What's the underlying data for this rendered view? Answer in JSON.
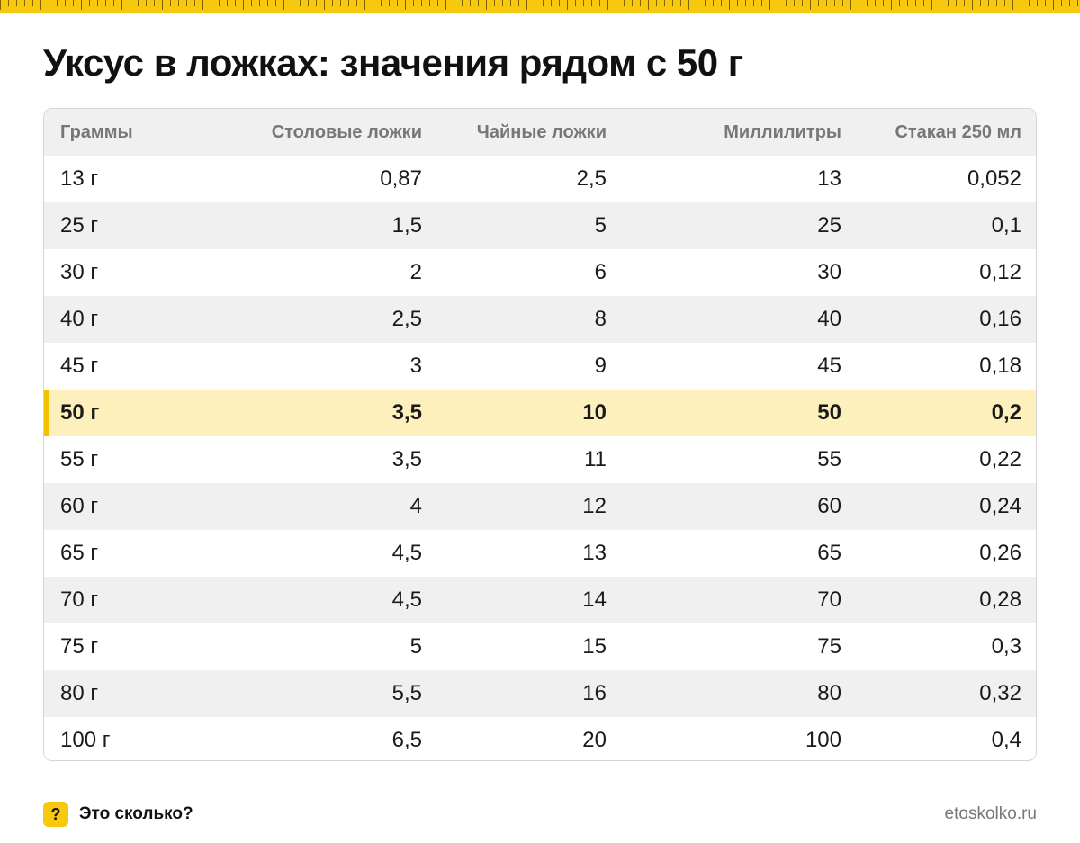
{
  "title": "Уксус в ложках: значения рядом с 50 г",
  "colors": {
    "accent": "#f6c90e",
    "highlight_row": "#fdf0bd",
    "alt_row": "#f0f0f0",
    "header_text": "#777777"
  },
  "table": {
    "headers": [
      "Граммы",
      "Столовые ложки",
      "Чайные ложки",
      "Миллилитры",
      "Стакан 250 мл"
    ],
    "highlighted_row": 5,
    "rows": [
      [
        "13 г",
        "0,87",
        "2,5",
        "13",
        "0,052"
      ],
      [
        "25 г",
        "1,5",
        "5",
        "25",
        "0,1"
      ],
      [
        "30 г",
        "2",
        "6",
        "30",
        "0,12"
      ],
      [
        "40 г",
        "2,5",
        "8",
        "40",
        "0,16"
      ],
      [
        "45 г",
        "3",
        "9",
        "45",
        "0,18"
      ],
      [
        "50 г",
        "3,5",
        "10",
        "50",
        "0,2"
      ],
      [
        "55 г",
        "3,5",
        "11",
        "55",
        "0,22"
      ],
      [
        "60 г",
        "4",
        "12",
        "60",
        "0,24"
      ],
      [
        "65 г",
        "4,5",
        "13",
        "65",
        "0,26"
      ],
      [
        "70 г",
        "4,5",
        "14",
        "70",
        "0,28"
      ],
      [
        "75 г",
        "5",
        "15",
        "75",
        "0,3"
      ],
      [
        "80 г",
        "5,5",
        "16",
        "80",
        "0,32"
      ],
      [
        "100 г",
        "6,5",
        "20",
        "100",
        "0,4"
      ]
    ]
  },
  "footer": {
    "badge_icon": "question-mark-icon",
    "badge_text": "?",
    "brand": "Это сколько?",
    "site": "etoskolko.ru"
  }
}
